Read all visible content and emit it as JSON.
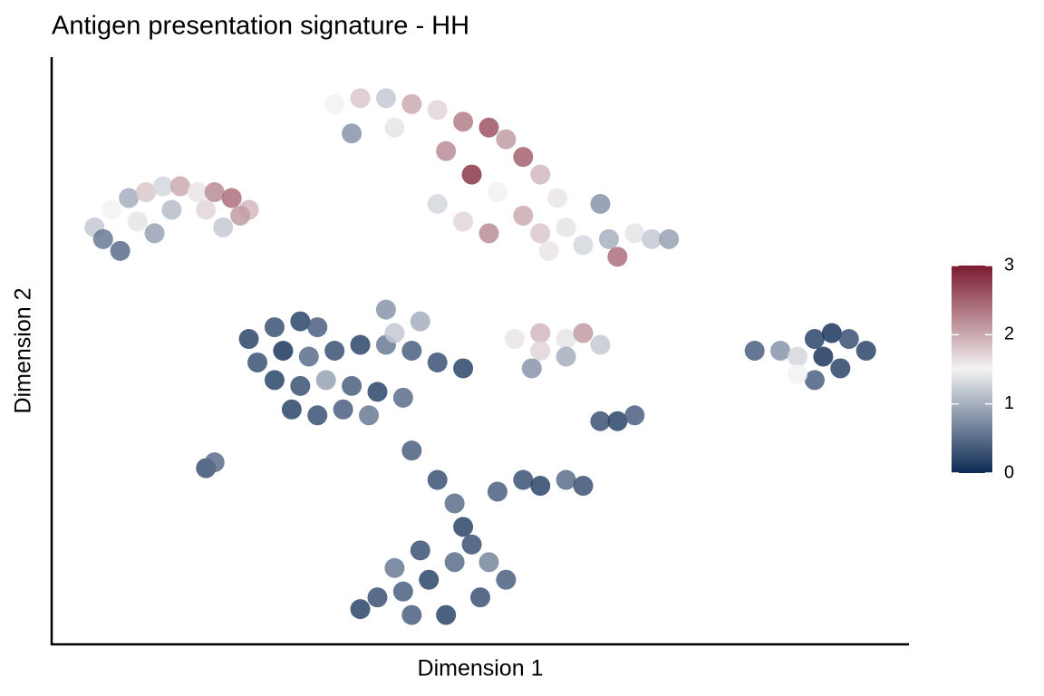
{
  "chart_data": {
    "type": "scatter",
    "title": "Antigen presentation signature - HH",
    "x_label": "Dimension 1",
    "y_label": "Dimension 2",
    "xlim": [
      0,
      100
    ],
    "ylim": [
      0,
      100
    ],
    "colormap": [
      "#0d2a55",
      "#f2f2f2",
      "#7b1a2e"
    ],
    "clim": [
      0,
      3
    ],
    "cticks": [
      0,
      1,
      2,
      3
    ],
    "x": [
      5,
      7,
      9,
      11,
      13,
      15,
      17,
      19,
      21,
      23,
      6,
      10,
      14,
      18,
      22,
      8,
      12,
      20,
      33,
      36,
      39,
      42,
      45,
      48,
      51,
      53,
      55,
      57,
      59,
      60,
      46,
      49,
      52,
      55,
      57,
      45,
      48,
      51,
      58,
      62,
      65,
      68,
      70,
      72,
      66,
      35,
      40,
      64,
      23,
      26,
      29,
      31,
      24,
      27,
      30,
      33,
      36,
      39,
      42,
      45,
      48,
      26,
      29,
      32,
      35,
      38,
      41,
      28,
      31,
      34,
      37,
      40,
      43,
      39,
      42,
      45,
      47,
      48,
      52,
      55,
      57,
      60,
      62,
      36,
      38,
      41,
      44,
      47,
      49,
      51,
      53,
      50,
      46,
      42,
      40,
      43,
      54,
      57,
      60,
      62,
      64,
      57,
      60,
      56,
      82,
      85,
      87,
      89,
      91,
      93,
      95,
      92,
      89,
      87,
      90,
      64,
      66,
      68,
      18,
      19
    ],
    "y": [
      71,
      74,
      76,
      77,
      78,
      78,
      77,
      77,
      76,
      74,
      69,
      72,
      74,
      74,
      73,
      67,
      70,
      71,
      92,
      93,
      93,
      92,
      91,
      89,
      88,
      86,
      83,
      80,
      76,
      71,
      84,
      80,
      77,
      73,
      70,
      75,
      72,
      70,
      67,
      68,
      69,
      70,
      69,
      69,
      66,
      87,
      88,
      75,
      52,
      54,
      55,
      54,
      48,
      50,
      49,
      50,
      51,
      51,
      50,
      48,
      47,
      45,
      44,
      45,
      44,
      43,
      42,
      40,
      39,
      40,
      39,
      53,
      55,
      57,
      33,
      28,
      24,
      20,
      26,
      28,
      27,
      28,
      27,
      6,
      8,
      9,
      11,
      14,
      17,
      14,
      11,
      8,
      5,
      5,
      13,
      16,
      52,
      53,
      52,
      53,
      51,
      50,
      49,
      47,
      50,
      50,
      49,
      52,
      53,
      52,
      50,
      47,
      45,
      46,
      49,
      38,
      38,
      39,
      30,
      31
    ],
    "values": [
      1.2,
      1.5,
      1.0,
      1.8,
      1.3,
      2.0,
      1.6,
      2.2,
      2.4,
      1.9,
      0.6,
      1.4,
      1.1,
      1.7,
      2.1,
      0.5,
      0.9,
      1.2,
      1.5,
      1.8,
      1.2,
      2.0,
      1.7,
      2.3,
      2.6,
      2.1,
      2.5,
      1.9,
      1.6,
      1.4,
      2.2,
      2.8,
      1.5,
      2.0,
      1.8,
      1.3,
      1.7,
      2.2,
      1.6,
      1.3,
      1.0,
      1.4,
      1.2,
      0.9,
      2.4,
      0.8,
      1.4,
      0.8,
      0.2,
      0.3,
      0.2,
      0.4,
      0.3,
      0.1,
      0.5,
      0.3,
      0.2,
      0.6,
      0.4,
      0.3,
      0.2,
      0.2,
      0.3,
      0.9,
      0.4,
      0.2,
      0.5,
      0.2,
      0.3,
      0.4,
      0.6,
      1.2,
      1.0,
      0.8,
      0.4,
      0.3,
      0.5,
      0.2,
      0.4,
      0.3,
      0.2,
      0.5,
      0.3,
      0.2,
      0.3,
      0.4,
      0.2,
      0.5,
      0.3,
      0.7,
      0.4,
      0.3,
      0.2,
      0.4,
      0.6,
      0.3,
      1.6,
      1.9,
      1.4,
      2.1,
      1.2,
      1.7,
      1.0,
      0.8,
      0.4,
      0.8,
      1.3,
      0.2,
      0.1,
      0.3,
      0.2,
      0.2,
      0.4,
      1.5,
      0.1,
      0.3,
      0.2,
      0.4,
      0.3,
      0.5
    ]
  }
}
